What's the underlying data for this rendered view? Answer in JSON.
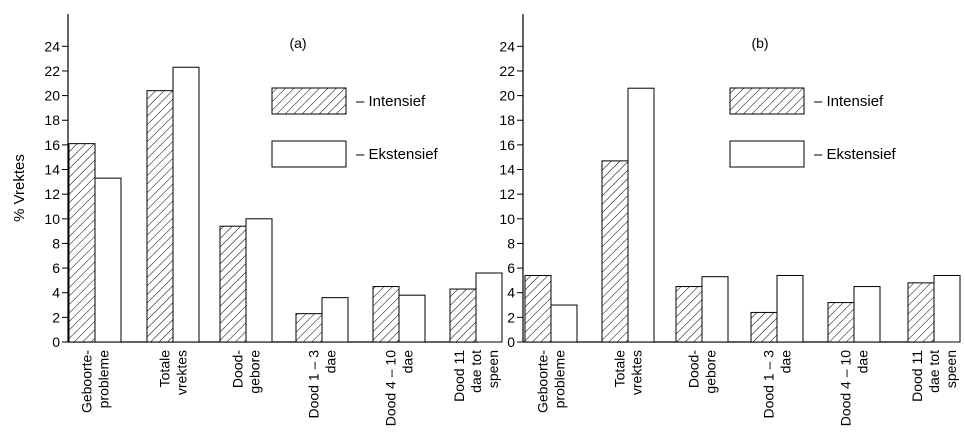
{
  "chart_data": [
    {
      "type": "bar",
      "panel_label": "(a)",
      "ylabel": "% Vrektes",
      "ylim": [
        0,
        26
      ],
      "yticks": [
        0,
        2,
        4,
        6,
        8,
        10,
        12,
        14,
        16,
        18,
        20,
        22,
        24
      ],
      "categories": [
        [
          "Geboorte-",
          "probleme"
        ],
        [
          "Totale",
          "vrektes"
        ],
        [
          "Dood-",
          "gebore"
        ],
        [
          "Dood 1 – 3",
          "dae"
        ],
        [
          "Dood 4 – 10",
          "dae"
        ],
        [
          "Dood 11",
          "dae tot",
          "speen"
        ]
      ],
      "series": [
        {
          "name": "Intensief",
          "pattern": "hatched",
          "values": [
            16.1,
            20.4,
            9.4,
            2.3,
            4.5,
            4.3
          ]
        },
        {
          "name": "Ekstensief",
          "pattern": "open",
          "values": [
            13.3,
            22.3,
            10.0,
            3.6,
            3.8,
            5.6
          ]
        }
      ],
      "legend": "top-right"
    },
    {
      "type": "bar",
      "panel_label": "(b)",
      "ylim": [
        0,
        26
      ],
      "yticks": [
        0,
        2,
        4,
        6,
        8,
        10,
        12,
        14,
        16,
        18,
        20,
        22,
        24
      ],
      "categories": [
        [
          "Geboorte-",
          "probleme"
        ],
        [
          "Totale",
          "vrektes"
        ],
        [
          "Dood-",
          "gebore"
        ],
        [
          "Dood 1 – 3",
          "dae"
        ],
        [
          "Dood 4 – 10",
          "dae"
        ],
        [
          "Dood 11",
          "dae tot",
          "speen"
        ]
      ],
      "series": [
        {
          "name": "Intensief",
          "pattern": "hatched",
          "values": [
            5.4,
            14.7,
            4.5,
            2.4,
            3.2,
            4.8
          ]
        },
        {
          "name": "Ekstensief",
          "pattern": "open",
          "values": [
            3.0,
            20.6,
            5.3,
            5.4,
            4.5,
            5.4
          ]
        }
      ],
      "legend": "top-right"
    }
  ],
  "legend_separator": "–"
}
